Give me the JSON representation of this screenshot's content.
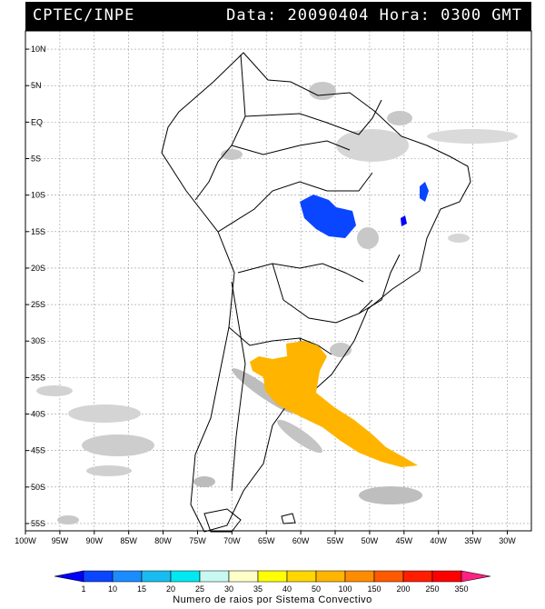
{
  "header": {
    "org": "CPTEC/INPE",
    "date_label": "Data:",
    "date_value": "20090404",
    "time_label": "Hora:",
    "time_value": "0300 GMT"
  },
  "map": {
    "lon_ticks": [
      "100W",
      "95W",
      "90W",
      "85W",
      "80W",
      "75W",
      "70W",
      "65W",
      "60W",
      "55W",
      "50W",
      "45W",
      "40W",
      "35W",
      "30W"
    ],
    "lat_ticks": [
      "10N",
      "5N",
      "EQ",
      "5S",
      "10S",
      "15S",
      "20S",
      "25S",
      "30S",
      "35S",
      "40S",
      "45S",
      "50S",
      "55S"
    ],
    "lon_range": [
      -100,
      -26.5
    ],
    "lat_range": [
      -56,
      12.5
    ]
  },
  "legend": {
    "title": "Numero de raios por Sistema Convectivo",
    "levels": [
      "1",
      "10",
      "15",
      "20",
      "25",
      "30",
      "35",
      "40",
      "50",
      "100",
      "150",
      "200",
      "250",
      "350"
    ],
    "colors": [
      "#0000ff",
      "#0a46ff",
      "#1a8cff",
      "#18bcf0",
      "#00e8f0",
      "#c8f8f0",
      "#ffffc8",
      "#ffff00",
      "#ffd600",
      "#ffb400",
      "#ff8c00",
      "#ff5a00",
      "#ff1e00",
      "#ff0000",
      "#ff2080"
    ]
  }
}
